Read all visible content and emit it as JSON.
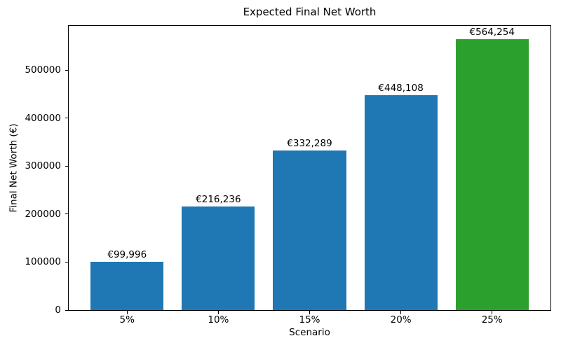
{
  "figure": {
    "background": "#ffffff",
    "text_color": "#000000",
    "spine_color": "#000000"
  },
  "chart_data": {
    "type": "bar",
    "title": "Expected Final Net Worth",
    "xlabel": "Scenario",
    "ylabel": "Final Net Worth (€)",
    "categories": [
      "5%",
      "10%",
      "15%",
      "20%",
      "25%"
    ],
    "values": [
      99996,
      216236,
      332289,
      448108,
      564254
    ],
    "bar_labels": [
      "€99,996",
      "€216,236",
      "€332,289",
      "€448,108",
      "€564,254"
    ],
    "bar_colors": [
      "#1f77b4",
      "#1f77b4",
      "#1f77b4",
      "#1f77b4",
      "#2ca02c"
    ],
    "ylim": [
      0,
      592467
    ],
    "ytick_values": [
      0,
      100000,
      200000,
      300000,
      400000,
      500000
    ],
    "ytick_labels": [
      "0",
      "100000",
      "200000",
      "300000",
      "400000",
      "500000"
    ],
    "grid": false,
    "legend_position": "none"
  }
}
